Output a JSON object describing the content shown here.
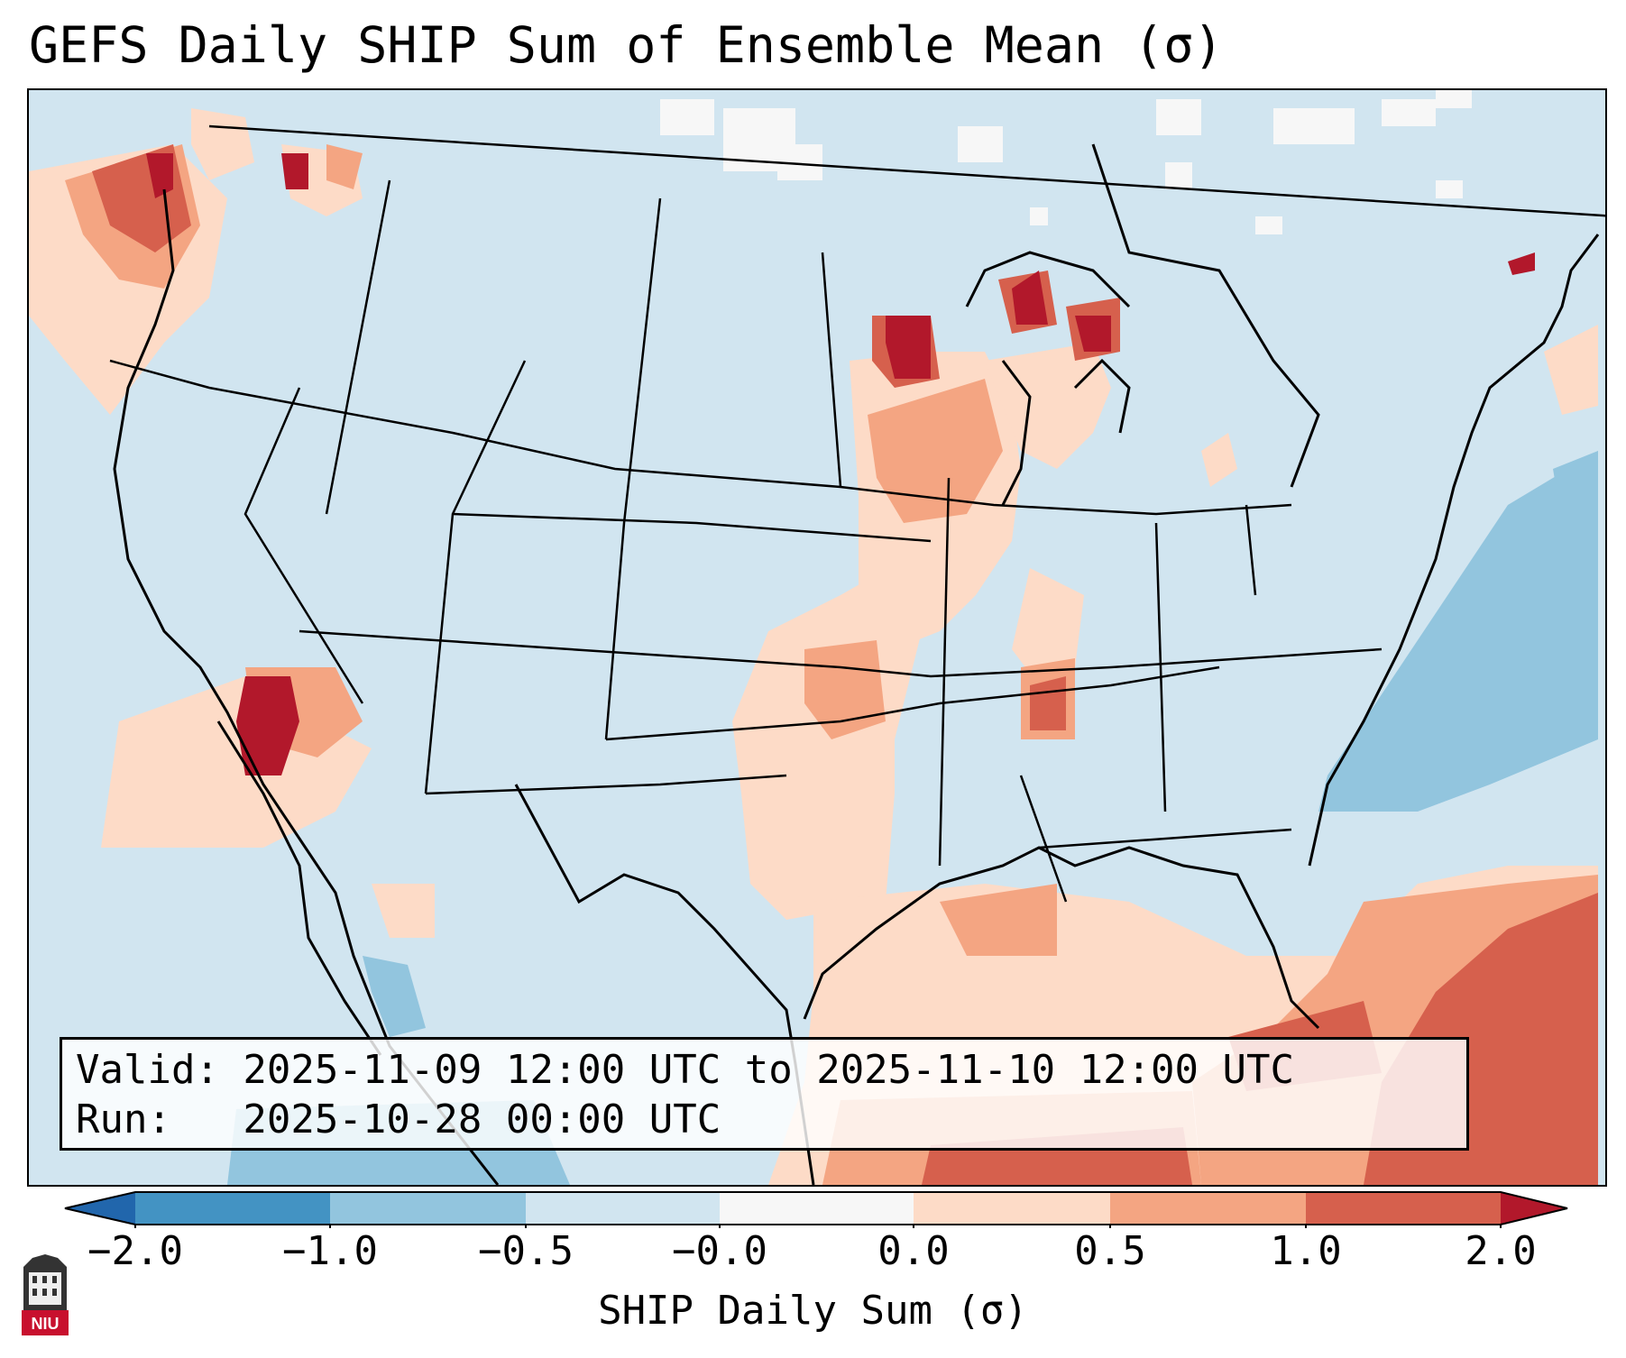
{
  "title": "GEFS Daily SHIP Sum of Ensemble Mean (σ)",
  "info": {
    "valid_line": "Valid: 2025-11-09 12:00 UTC to 2025-11-10 12:00 UTC",
    "run_line": "Run:   2025-10-28 00:00 UTC"
  },
  "colorbar": {
    "label": "SHIP Daily Sum (σ)",
    "ticks": [
      "−2.0",
      "−1.0",
      "−0.5",
      "−0.0",
      "0.0",
      "0.5",
      "1.0",
      "2.0"
    ],
    "bins": [
      {
        "from": -3.0,
        "to": -2.0,
        "color": "#2166ac"
      },
      {
        "from": -2.0,
        "to": -1.0,
        "color": "#4393c3"
      },
      {
        "from": -1.0,
        "to": -0.5,
        "color": "#92c5de"
      },
      {
        "from": -0.5,
        "to": -0.0,
        "color": "#d1e5f0"
      },
      {
        "from": -0.0,
        "to": 0.0,
        "color": "#f7f7f7"
      },
      {
        "from": 0.0,
        "to": 0.5,
        "color": "#fddbc7"
      },
      {
        "from": 0.5,
        "to": 1.0,
        "color": "#f4a582"
      },
      {
        "from": 1.0,
        "to": 2.0,
        "color": "#d6604d"
      },
      {
        "from": 2.0,
        "to": 3.0,
        "color": "#b2182b"
      }
    ]
  },
  "logo": {
    "icon": "niu-logo",
    "text": "NIU"
  },
  "map": {
    "region": "CONUS",
    "field_highlights": [
      {
        "area": "Pacific Northwest coast",
        "level": "high"
      },
      {
        "area": "Minnesota / Wisconsin",
        "level": "high"
      },
      {
        "area": "Michigan Upper Peninsula",
        "level": "high"
      },
      {
        "area": "Southern California / Arizona",
        "level": "high"
      },
      {
        "area": "Gulf of Mexico / Caribbean",
        "level": "elevated"
      },
      {
        "area": "Western Atlantic",
        "level": "below"
      }
    ]
  }
}
